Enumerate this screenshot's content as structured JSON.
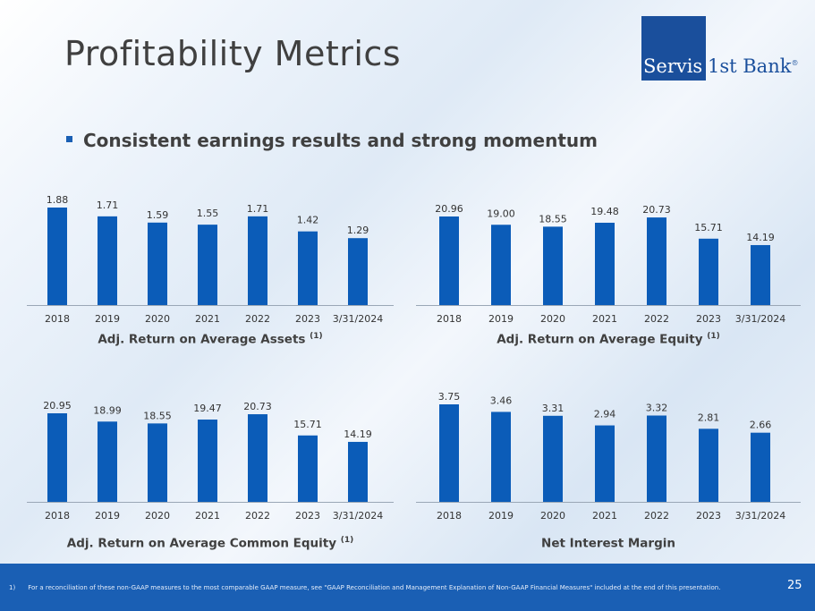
{
  "slide": {
    "title": "Profitability Metrics",
    "bullet": "Consistent earnings results and strong momentum"
  },
  "logo": {
    "word1": "Servis",
    "word2": "1st Bank",
    "mark": "®"
  },
  "colors": {
    "bar": "#0b5cb8",
    "accent": "#1a5fb4",
    "text": "#404040"
  },
  "footer": {
    "footnote_number": "1)",
    "footnote_text": "For a reconciliation of these non-GAAP measures to the most comparable GAAP measure, see \"GAAP Reconciliation and Management Explanation of Non-GAAP Financial Measures\" included at the end of this presentation.",
    "page_number": "25"
  },
  "chart_data": [
    {
      "type": "bar",
      "title": "Adj. Return on Average Assets",
      "title_superscript": "(1)",
      "categories": [
        "2018",
        "2019",
        "2020",
        "2021",
        "2022",
        "2023",
        "3/31/2024"
      ],
      "values": [
        1.88,
        1.71,
        1.59,
        1.55,
        1.71,
        1.42,
        1.29
      ],
      "labels": [
        "1.88",
        "1.71",
        "1.59",
        "1.55",
        "1.71",
        "1.42",
        "1.29"
      ],
      "ylim": [
        0,
        1.88
      ]
    },
    {
      "type": "bar",
      "title": "Adj. Return on Average Equity",
      "title_superscript": "(1)",
      "categories": [
        "2018",
        "2019",
        "2020",
        "2021",
        "2022",
        "2023",
        "3/31/2024"
      ],
      "values": [
        20.96,
        19.0,
        18.55,
        19.48,
        20.73,
        15.71,
        14.19
      ],
      "labels": [
        "20.96",
        "19.00",
        "18.55",
        "19.48",
        "20.73",
        "15.71",
        "14.19"
      ],
      "ylim": [
        0,
        20.96
      ]
    },
    {
      "type": "bar",
      "title": "Adj. Return on Average Common Equity",
      "title_superscript": "(1)",
      "categories": [
        "2018",
        "2019",
        "2020",
        "2021",
        "2022",
        "2023",
        "3/31/2024"
      ],
      "values": [
        20.95,
        18.99,
        18.55,
        19.47,
        20.73,
        15.71,
        14.19
      ],
      "labels": [
        "20.95",
        "18.99",
        "18.55",
        "19.47",
        "20.73",
        "15.71",
        "14.19"
      ],
      "ylim": [
        0,
        20.95
      ]
    },
    {
      "type": "bar",
      "title": "Net Interest Margin",
      "title_superscript": "",
      "categories": [
        "2018",
        "2019",
        "2020",
        "2021",
        "2022",
        "2023",
        "3/31/2024"
      ],
      "values": [
        3.75,
        3.46,
        3.31,
        2.94,
        3.32,
        2.81,
        2.66
      ],
      "labels": [
        "3.75",
        "3.46",
        "3.31",
        "2.94",
        "3.32",
        "2.81",
        "2.66"
      ],
      "ylim": [
        0,
        3.75
      ]
    }
  ]
}
